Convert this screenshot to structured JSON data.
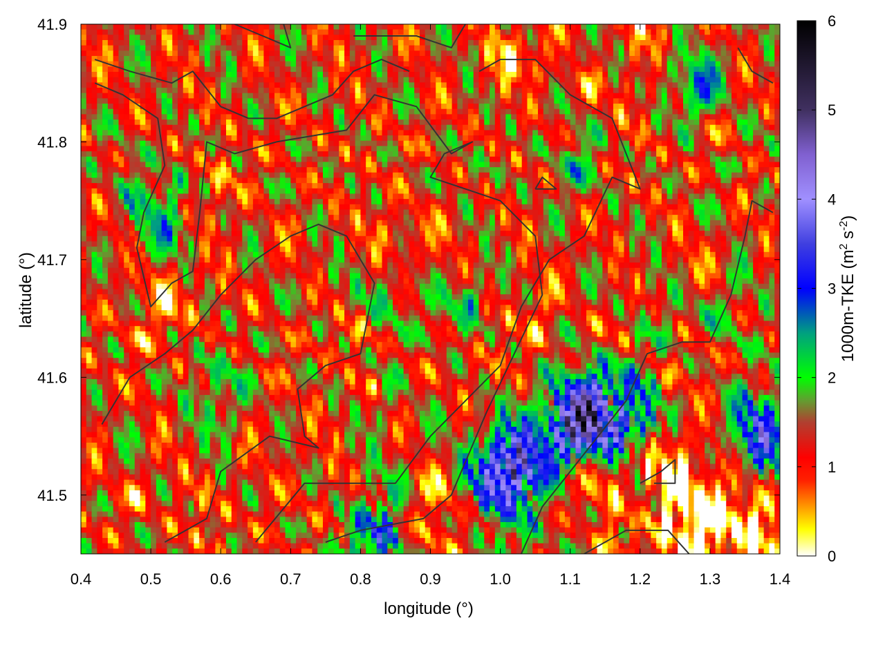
{
  "chart_data": {
    "type": "heatmap",
    "xlabel": "longitude (°)",
    "ylabel": "latitude (°)",
    "colorbar_label_base": "1000m-TKE (m",
    "colorbar_label_sup1": "2",
    "colorbar_label_mid": " s",
    "colorbar_label_sup2": "-2",
    "colorbar_label_end": ")",
    "xlim": [
      0.4,
      1.4
    ],
    "ylim": [
      41.45,
      41.9
    ],
    "zlim": [
      0,
      6
    ],
    "x_ticks": [
      0.4,
      0.5,
      0.6,
      0.7,
      0.8,
      0.9,
      1.0,
      1.1,
      1.2,
      1.3,
      1.4
    ],
    "x_tick_labels": [
      "0.4",
      "0.5",
      "0.6",
      "0.7",
      "0.8",
      "0.9",
      "1.0",
      "1.1",
      "1.2",
      "1.3",
      "1.4"
    ],
    "y_ticks": [
      41.5,
      41.6,
      41.7,
      41.8,
      41.9
    ],
    "y_tick_labels": [
      "41.5",
      "41.6",
      "41.7",
      "41.8",
      "41.9"
    ],
    "z_ticks": [
      0,
      1,
      2,
      3,
      4,
      5,
      6
    ],
    "z_tick_labels": [
      "0",
      "1",
      "2",
      "3",
      "4",
      "5",
      "6"
    ],
    "colormap": [
      [
        0,
        "#ffffff"
      ],
      [
        0.3,
        "#ffff00"
      ],
      [
        0.85,
        "#ff2000"
      ],
      [
        1.1,
        "#ff0000"
      ],
      [
        1.5,
        "#b04030"
      ],
      [
        1.75,
        "#60a030"
      ],
      [
        2.0,
        "#00ff00"
      ],
      [
        2.5,
        "#00a080"
      ],
      [
        3.0,
        "#0000ff"
      ],
      [
        3.5,
        "#4040e0"
      ],
      [
        4.0,
        "#a090ff"
      ],
      [
        4.5,
        "#8060d0"
      ],
      [
        5.0,
        "#403060"
      ],
      [
        6.0,
        "#000000"
      ]
    ],
    "grid": false,
    "legend": "colorbar-right",
    "field_description_values": {
      "background_tke_range": [
        0.8,
        2.0
      ],
      "high_tke_regions": [
        {
          "lon": 0.82,
          "lat": 41.47,
          "tke": 3.8
        },
        {
          "lon": 1.01,
          "lat": 41.52,
          "tke": 5.5
        },
        {
          "lon": 1.11,
          "lat": 41.56,
          "tke": 5.8
        },
        {
          "lon": 1.18,
          "lat": 41.57,
          "tke": 4.2
        },
        {
          "lon": 1.37,
          "lat": 41.55,
          "tke": 4.0
        },
        {
          "lon": 0.5,
          "lat": 41.73,
          "tke": 2.9
        }
      ],
      "low_tke_regions": [
        {
          "lon": 1.28,
          "lat": 41.47,
          "tke": 0.3
        },
        {
          "lon": 1.22,
          "lat": 41.52,
          "tke": 0.5
        },
        {
          "lon": 1.38,
          "lat": 41.46,
          "tke": 0.2
        }
      ]
    }
  }
}
